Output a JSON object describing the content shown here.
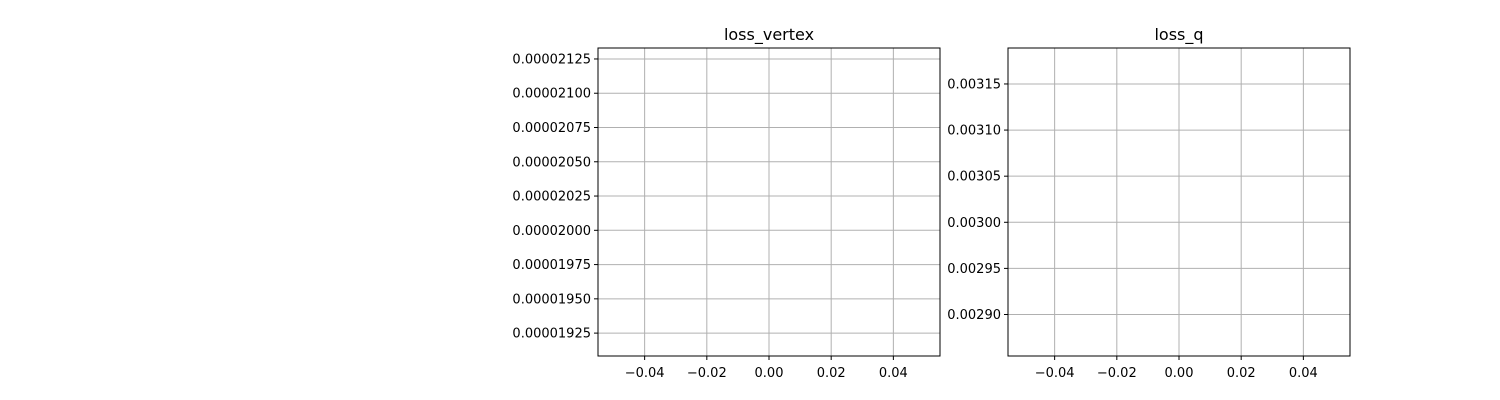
{
  "chart_data": [
    {
      "type": "line",
      "title": "loss_vertex",
      "xlabel": "",
      "ylabel": "",
      "xlim": [
        -0.055,
        0.055
      ],
      "ylim": [
        1.9083e-05,
        2.133e-05
      ],
      "x_ticks": [
        -0.04,
        -0.02,
        0.0,
        0.02,
        0.04
      ],
      "x_tick_labels": [
        "−0.04",
        "−0.02",
        "0.00",
        "0.02",
        "0.04"
      ],
      "y_ticks": [
        1.925e-05,
        1.95e-05,
        1.975e-05,
        2e-05,
        2.025e-05,
        2.05e-05,
        2.075e-05,
        2.1e-05,
        2.125e-05
      ],
      "y_tick_labels": [
        "0.00001925",
        "0.00001950",
        "0.00001975",
        "0.00002000",
        "0.00002025",
        "0.00002050",
        "0.00002075",
        "0.00002100",
        "0.00002125"
      ],
      "grid": true,
      "series": []
    },
    {
      "type": "line",
      "title": "loss_q",
      "xlabel": "",
      "ylabel": "",
      "xlim": [
        -0.055,
        0.055
      ],
      "ylim": [
        0.002855,
        0.003189
      ],
      "x_ticks": [
        -0.04,
        -0.02,
        0.0,
        0.02,
        0.04
      ],
      "x_tick_labels": [
        "−0.04",
        "−0.02",
        "0.00",
        "0.02",
        "0.04"
      ],
      "y_ticks": [
        0.0029,
        0.00295,
        0.003,
        0.00305,
        0.0031,
        0.00315
      ],
      "y_tick_labels": [
        "0.00290",
        "0.00295",
        "0.00300",
        "0.00305",
        "0.00310",
        "0.00315"
      ],
      "grid": true,
      "series": []
    }
  ]
}
